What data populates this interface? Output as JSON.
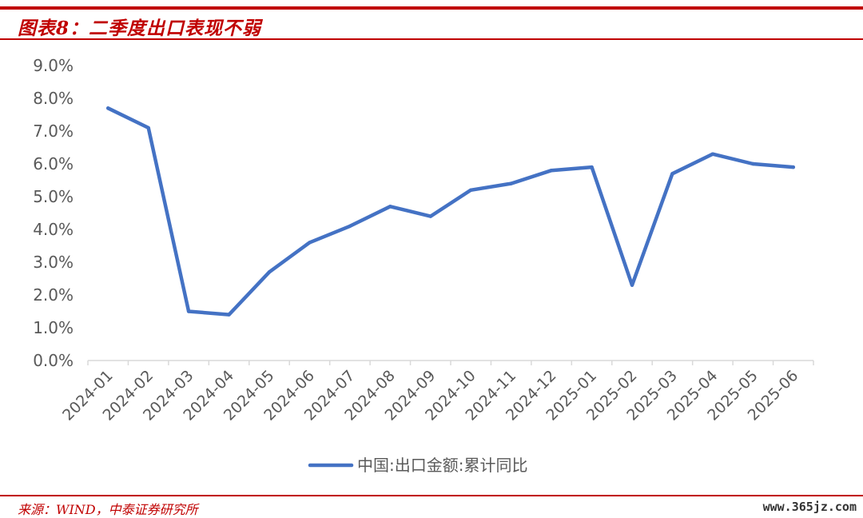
{
  "title": "图表8：二季度出口表现不弱",
  "source": "来源：WIND，中泰证券研究所",
  "watermark": "www.365jz.com",
  "colors": {
    "accent": "#c00000",
    "line": "#4472c4",
    "axis_text": "#595959",
    "axis_line": "#d9d9d9"
  },
  "chart_data": {
    "type": "line",
    "title": "",
    "xlabel": "",
    "ylabel": "",
    "ylim": [
      0,
      9
    ],
    "ytick_step": 1,
    "ytick_format": "percent_1dp",
    "grid": false,
    "legend_position": "bottom-center",
    "categories": [
      "2024-01",
      "2024-02",
      "2024-03",
      "2024-04",
      "2024-05",
      "2024-06",
      "2024-07",
      "2024-08",
      "2024-09",
      "2024-10",
      "2024-11",
      "2024-12",
      "2025-01",
      "2025-02",
      "2025-03",
      "2025-04",
      "2025-05",
      "2025-06"
    ],
    "series": [
      {
        "name": "中国:出口金额:累计同比",
        "values": [
          7.7,
          7.1,
          1.5,
          1.4,
          2.7,
          3.6,
          4.1,
          4.7,
          4.4,
          5.2,
          5.4,
          5.8,
          5.9,
          2.3,
          5.7,
          6.3,
          6.0,
          5.9
        ]
      }
    ]
  }
}
